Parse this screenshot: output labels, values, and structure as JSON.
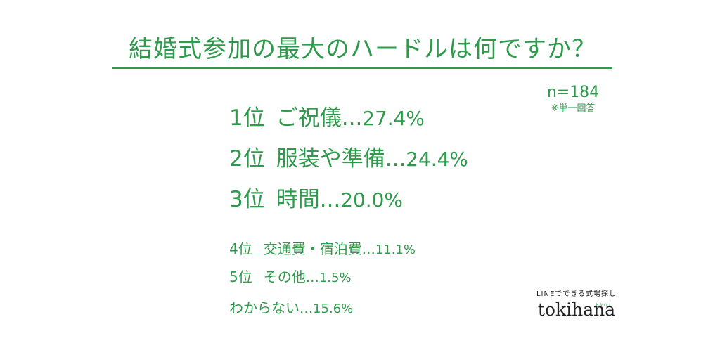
{
  "colors": {
    "accent": "#2e9a4b",
    "background": "#ffffff",
    "logo_text": "#222222"
  },
  "chart_data": {
    "type": "table",
    "title": "結婚式参加の最大のハードルは何ですか？",
    "sample_size": "n=184",
    "note": "※単一回答",
    "separator": "...",
    "items": [
      {
        "rank": "1位",
        "label": "ご祝儀",
        "value": 27.4,
        "value_text": "27.4%"
      },
      {
        "rank": "2位",
        "label": "服装や準備",
        "value": 24.4,
        "value_text": "24.4%"
      },
      {
        "rank": "3位",
        "label": "時間",
        "value": 20.0,
        "value_text": "20.0%"
      },
      {
        "rank": "4位",
        "label": "交通費・宿泊費",
        "value": 11.1,
        "value_text": "11.1%"
      },
      {
        "rank": "5位",
        "label": "その他",
        "value": 1.5,
        "value_text": "1.5%"
      },
      {
        "rank": "",
        "label": "わからない",
        "value": 15.6,
        "value_text": "15.6%"
      }
    ]
  },
  "brand": {
    "tagline": "LINEでできる式場探し",
    "logo": "tokihana",
    "logo_kana": "トキハナ"
  }
}
